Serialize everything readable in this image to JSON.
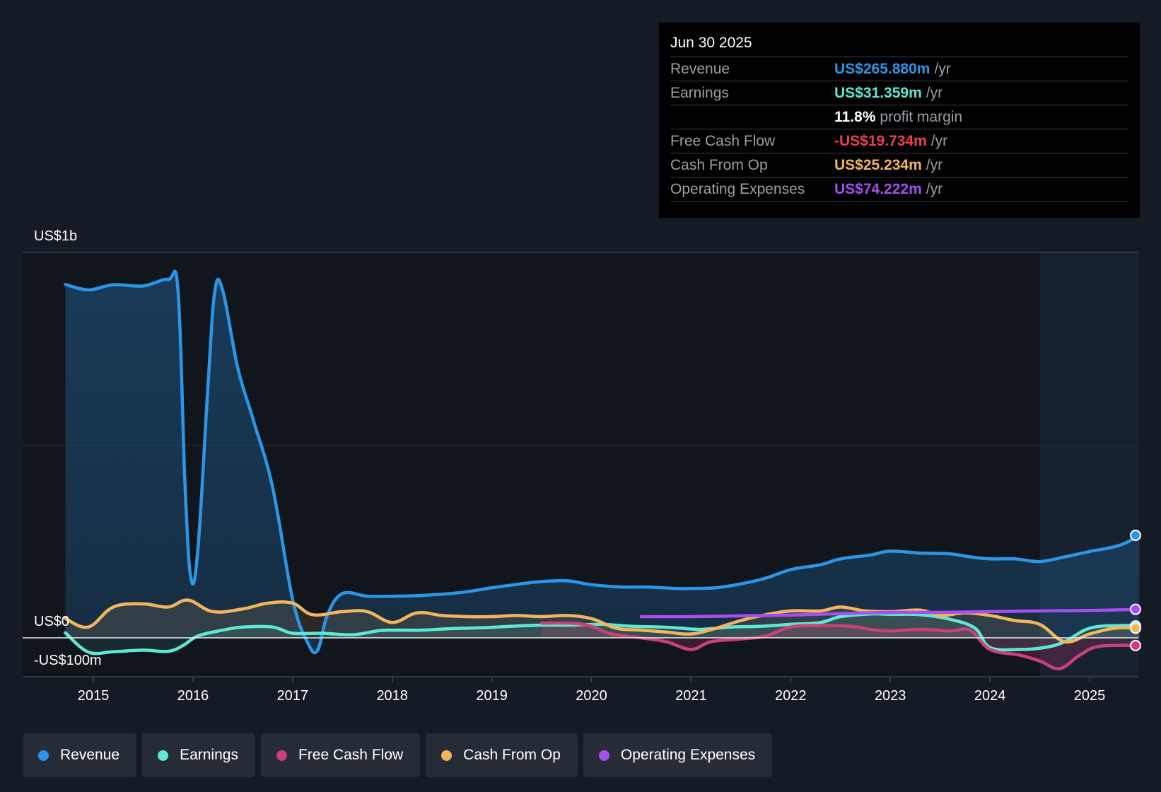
{
  "tooltip": {
    "date": "Jun 30 2025",
    "rows": [
      {
        "label": "Revenue",
        "value": "US$265.880m",
        "unit": "/yr",
        "color": "#2b96e6"
      },
      {
        "label": "Earnings",
        "value": "US$31.359m",
        "unit": "/yr",
        "color": "#5ee8d3"
      },
      {
        "label": "",
        "value": "11.8%",
        "unit": "profit margin",
        "color": "#ffffff"
      },
      {
        "label": "Free Cash Flow",
        "value": "-US$19.734m",
        "unit": "/yr",
        "color": "#ee3e56"
      },
      {
        "label": "Cash From Op",
        "value": "US$25.234m",
        "unit": "/yr",
        "color": "#f3b55c"
      },
      {
        "label": "Operating Expenses",
        "value": "US$74.222m",
        "unit": "/yr",
        "color": "#a64ef2"
      }
    ]
  },
  "legend": [
    {
      "name": "Revenue",
      "color": "#2b96e6"
    },
    {
      "name": "Earnings",
      "color": "#5ee8d3"
    },
    {
      "name": "Free Cash Flow",
      "color": "#cc3f7d"
    },
    {
      "name": "Cash From Op",
      "color": "#f3b55c"
    },
    {
      "name": "Operating Expenses",
      "color": "#a64ef2"
    }
  ],
  "chart_data": {
    "type": "line",
    "y_labels": {
      "top": "US$1b",
      "zero": "US$0",
      "bottom": "-US$100m"
    },
    "ylim": [
      -100,
      1000
    ],
    "xlim": [
      2014.75,
      2025.55
    ],
    "x_ticks": [
      "2015",
      "2016",
      "2017",
      "2018",
      "2019",
      "2020",
      "2021",
      "2022",
      "2023",
      "2024",
      "2025"
    ],
    "forecast_start": 2024.5,
    "grid": true,
    "series": [
      {
        "name": "Revenue",
        "color": "#2b96e6",
        "fill": true,
        "points": [
          [
            2014.72,
            917
          ],
          [
            2014.95,
            903
          ],
          [
            2015.2,
            916
          ],
          [
            2015.5,
            913
          ],
          [
            2015.75,
            930
          ],
          [
            2015.85,
            900
          ],
          [
            2015.92,
            400
          ],
          [
            2015.98,
            153
          ],
          [
            2016.05,
            230
          ],
          [
            2016.15,
            650
          ],
          [
            2016.22,
            900
          ],
          [
            2016.3,
            900
          ],
          [
            2016.45,
            700
          ],
          [
            2016.6,
            570
          ],
          [
            2016.8,
            390
          ],
          [
            2017.0,
            100
          ],
          [
            2017.15,
            -12
          ],
          [
            2017.25,
            -33
          ],
          [
            2017.35,
            60
          ],
          [
            2017.5,
            115
          ],
          [
            2017.75,
            108
          ],
          [
            2018.0,
            108
          ],
          [
            2018.3,
            110
          ],
          [
            2018.7,
            118
          ],
          [
            2019.0,
            130
          ],
          [
            2019.2,
            137
          ],
          [
            2019.45,
            145
          ],
          [
            2019.75,
            148
          ],
          [
            2020.0,
            138
          ],
          [
            2020.3,
            132
          ],
          [
            2020.55,
            132
          ],
          [
            2020.85,
            128
          ],
          [
            2021.0,
            128
          ],
          [
            2021.25,
            130
          ],
          [
            2021.5,
            140
          ],
          [
            2021.75,
            155
          ],
          [
            2022.0,
            177
          ],
          [
            2022.3,
            190
          ],
          [
            2022.5,
            205
          ],
          [
            2022.8,
            215
          ],
          [
            2023.0,
            225
          ],
          [
            2023.3,
            220
          ],
          [
            2023.6,
            218
          ],
          [
            2023.8,
            210
          ],
          [
            2024.0,
            205
          ],
          [
            2024.25,
            205
          ],
          [
            2024.5,
            198
          ],
          [
            2024.75,
            210
          ],
          [
            2025.0,
            224
          ],
          [
            2025.3,
            240
          ],
          [
            2025.5,
            266
          ]
        ]
      },
      {
        "name": "Earnings",
        "color": "#5ee8d3",
        "fill": true,
        "points": [
          [
            2014.72,
            13
          ],
          [
            2014.95,
            -37
          ],
          [
            2015.2,
            -36
          ],
          [
            2015.5,
            -32
          ],
          [
            2015.75,
            -35
          ],
          [
            2015.9,
            -20
          ],
          [
            2016.05,
            5
          ],
          [
            2016.3,
            20
          ],
          [
            2016.5,
            28
          ],
          [
            2016.8,
            28
          ],
          [
            2017.0,
            12
          ],
          [
            2017.3,
            12
          ],
          [
            2017.6,
            8
          ],
          [
            2017.85,
            18
          ],
          [
            2018.0,
            20
          ],
          [
            2018.3,
            20
          ],
          [
            2018.6,
            24
          ],
          [
            2018.9,
            26
          ],
          [
            2019.2,
            30
          ],
          [
            2019.5,
            33
          ],
          [
            2019.8,
            33
          ],
          [
            2020.1,
            35
          ],
          [
            2020.4,
            30
          ],
          [
            2020.7,
            28
          ],
          [
            2020.9,
            25
          ],
          [
            2021.1,
            22
          ],
          [
            2021.4,
            28
          ],
          [
            2021.7,
            30
          ],
          [
            2022.0,
            35
          ],
          [
            2022.3,
            40
          ],
          [
            2022.5,
            55
          ],
          [
            2022.8,
            62
          ],
          [
            2023.0,
            61
          ],
          [
            2023.3,
            60
          ],
          [
            2023.6,
            48
          ],
          [
            2023.85,
            25
          ],
          [
            2024.0,
            -25
          ],
          [
            2024.3,
            -30
          ],
          [
            2024.55,
            -25
          ],
          [
            2024.75,
            -10
          ],
          [
            2025.0,
            25
          ],
          [
            2025.3,
            32
          ],
          [
            2025.5,
            31
          ]
        ]
      },
      {
        "name": "Free Cash Flow",
        "color": "#cc3f7d",
        "fill": true,
        "points": [
          [
            2019.5,
            38
          ],
          [
            2019.8,
            38
          ],
          [
            2020.0,
            30
          ],
          [
            2020.2,
            10
          ],
          [
            2020.5,
            0
          ],
          [
            2020.75,
            -10
          ],
          [
            2021.0,
            -30
          ],
          [
            2021.2,
            -10
          ],
          [
            2021.5,
            -3
          ],
          [
            2021.75,
            5
          ],
          [
            2022.0,
            28
          ],
          [
            2022.3,
            32
          ],
          [
            2022.6,
            30
          ],
          [
            2022.8,
            22
          ],
          [
            2023.0,
            18
          ],
          [
            2023.3,
            22
          ],
          [
            2023.6,
            18
          ],
          [
            2023.8,
            20
          ],
          [
            2024.0,
            -30
          ],
          [
            2024.3,
            -45
          ],
          [
            2024.5,
            -60
          ],
          [
            2024.7,
            -80
          ],
          [
            2024.9,
            -45
          ],
          [
            2025.1,
            -22
          ],
          [
            2025.5,
            -20
          ]
        ]
      },
      {
        "name": "Cash From Op",
        "color": "#f3b55c",
        "fill": true,
        "points": [
          [
            2014.72,
            50
          ],
          [
            2014.95,
            28
          ],
          [
            2015.2,
            80
          ],
          [
            2015.5,
            88
          ],
          [
            2015.75,
            80
          ],
          [
            2015.95,
            98
          ],
          [
            2016.2,
            68
          ],
          [
            2016.5,
            75
          ],
          [
            2016.75,
            90
          ],
          [
            2017.0,
            90
          ],
          [
            2017.2,
            60
          ],
          [
            2017.5,
            68
          ],
          [
            2017.75,
            68
          ],
          [
            2018.0,
            40
          ],
          [
            2018.25,
            65
          ],
          [
            2018.5,
            58
          ],
          [
            2018.75,
            55
          ],
          [
            2019.0,
            55
          ],
          [
            2019.25,
            58
          ],
          [
            2019.5,
            55
          ],
          [
            2019.75,
            58
          ],
          [
            2020.0,
            50
          ],
          [
            2020.25,
            25
          ],
          [
            2020.5,
            20
          ],
          [
            2020.75,
            15
          ],
          [
            2021.0,
            10
          ],
          [
            2021.25,
            25
          ],
          [
            2021.5,
            45
          ],
          [
            2021.75,
            60
          ],
          [
            2022.0,
            70
          ],
          [
            2022.3,
            70
          ],
          [
            2022.5,
            80
          ],
          [
            2022.75,
            70
          ],
          [
            2023.0,
            68
          ],
          [
            2023.3,
            72
          ],
          [
            2023.5,
            58
          ],
          [
            2023.75,
            65
          ],
          [
            2024.0,
            58
          ],
          [
            2024.25,
            45
          ],
          [
            2024.5,
            35
          ],
          [
            2024.75,
            -10
          ],
          [
            2025.0,
            10
          ],
          [
            2025.25,
            25
          ],
          [
            2025.5,
            25
          ]
        ]
      },
      {
        "name": "Operating Expenses",
        "color": "#a64ef2",
        "fill": false,
        "points": [
          [
            2020.5,
            55
          ],
          [
            2021.0,
            55
          ],
          [
            2021.5,
            57
          ],
          [
            2022.0,
            59
          ],
          [
            2022.5,
            63
          ],
          [
            2023.0,
            66
          ],
          [
            2023.5,
            66
          ],
          [
            2024.0,
            68
          ],
          [
            2024.5,
            70
          ],
          [
            2025.0,
            71
          ],
          [
            2025.5,
            74
          ]
        ]
      }
    ]
  }
}
